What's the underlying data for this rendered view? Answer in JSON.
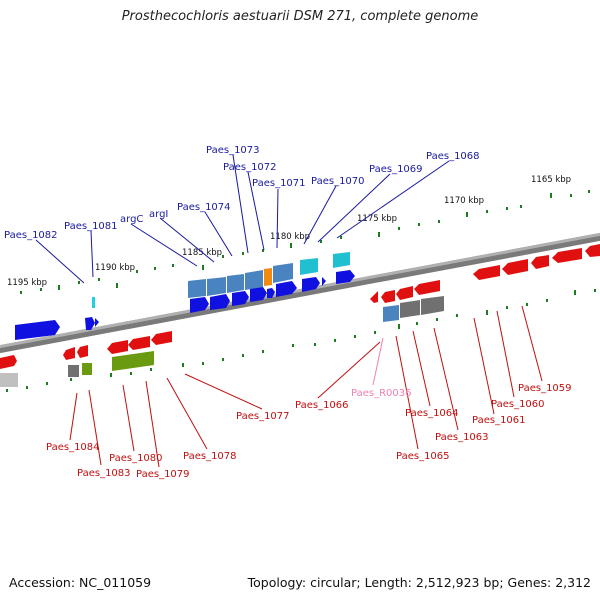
{
  "title": "Prosthecochloris aestuarii DSM 271, complete genome",
  "footer": {
    "accession": "Accession: NC_011059",
    "summary": "Topology: circular; Length: 2,512,923 bp; Genes: 2,312"
  },
  "colors": {
    "forward_blue": "#1010e0",
    "forward_steel": "#4a84c0",
    "forward_cyan": "#20c0d0",
    "forward_orange": "#f08a10",
    "reverse_red": "#e01010",
    "reverse_olive": "#6a9a10",
    "reverse_gray": "#707070",
    "label_blue": "#1a1aa0",
    "label_red": "#c01010",
    "label_pink": "#f080b0",
    "tick_green": "#207a20",
    "backbone": "#7a7a7a"
  },
  "scale_labels": [
    "1165 kbp",
    "1170 kbp",
    "1175 kbp",
    "1180 kbp",
    "1185 kbp",
    "1190 kbp",
    "1195 kbp"
  ],
  "forward_labels": [
    "Paes_1068",
    "Paes_1069",
    "Paes_1070",
    "Paes_1071",
    "Paes_1072",
    "Paes_1073",
    "Paes_1074",
    "argI",
    "argC",
    "Paes_1081",
    "Paes_1082"
  ],
  "reverse_labels": [
    "Paes_1059",
    "Paes_1060",
    "Paes_1061",
    "Paes_1063",
    "Paes_1064",
    "Paes_1065",
    "Paes_R0036",
    "Paes_1066",
    "Paes_1077",
    "Paes_1078",
    "Paes_1079",
    "Paes_1080",
    "Paes_1083",
    "Paes_1084"
  ]
}
